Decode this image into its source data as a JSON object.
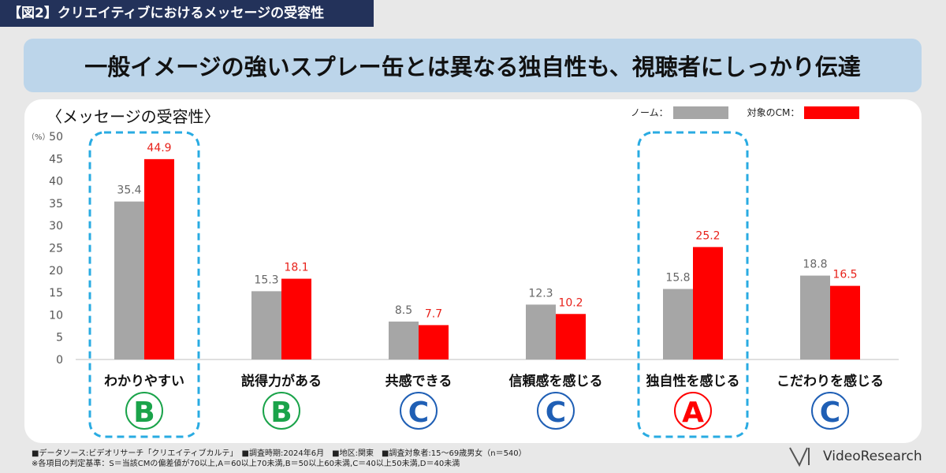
{
  "figure_label": "【図2】クリエイティブにおけるメッセージの受容性",
  "headline": "一般イメージの強いスプレー缶とは異なる独自性も、視聴者にしっかり伝達",
  "chart_title": "〈メッセージの受容性〉",
  "legend": [
    {
      "label": "ノーム：",
      "color": "#a6a6a6"
    },
    {
      "label": "対象のCM：",
      "color": "#ff0000"
    }
  ],
  "colors": {
    "norm": "#a6a6a6",
    "target": "#ff0000",
    "target_label": "#e8211a",
    "norm_label": "#666666",
    "highlight_border": "#29abe2"
  },
  "chart_data": {
    "type": "bar",
    "categories": [
      "わかりやすい",
      "説得力がある",
      "共感できる",
      "信頼感を感じる",
      "独自性を感じる",
      "こだわりを感じる"
    ],
    "series": [
      {
        "name": "ノーム",
        "values": [
          35.4,
          15.3,
          8.5,
          12.3,
          15.8,
          18.8
        ]
      },
      {
        "name": "対象のCM",
        "values": [
          44.9,
          18.1,
          7.7,
          10.2,
          25.2,
          16.5
        ]
      }
    ],
    "grades": [
      "B",
      "B",
      "C",
      "C",
      "A",
      "C"
    ],
    "grade_colors": {
      "A": "#ff0000",
      "B": "#1aa34a",
      "C": "#1f5fb5"
    },
    "highlighted_categories": [
      "わかりやすい",
      "独自性を感じる"
    ],
    "ylim": [
      0,
      50
    ],
    "yticks": [
      0,
      5,
      10,
      15,
      20,
      25,
      30,
      35,
      40,
      45,
      50
    ],
    "yunit": "（%）"
  },
  "footer": {
    "line1": "■データソース:ビデオリサーチ「クリエイティブカルテ」　■調査時期:2024年6月　■地区:関東　■調査対象者:15～69歳男女（n＝540）",
    "line2": "※各項目の判定基準：S＝当該CMの偏差値が70以上,A＝60以上70未満,B＝50以上60未満,C＝40以上50未満,D＝40未満"
  },
  "logo_text": "VideoResearch"
}
